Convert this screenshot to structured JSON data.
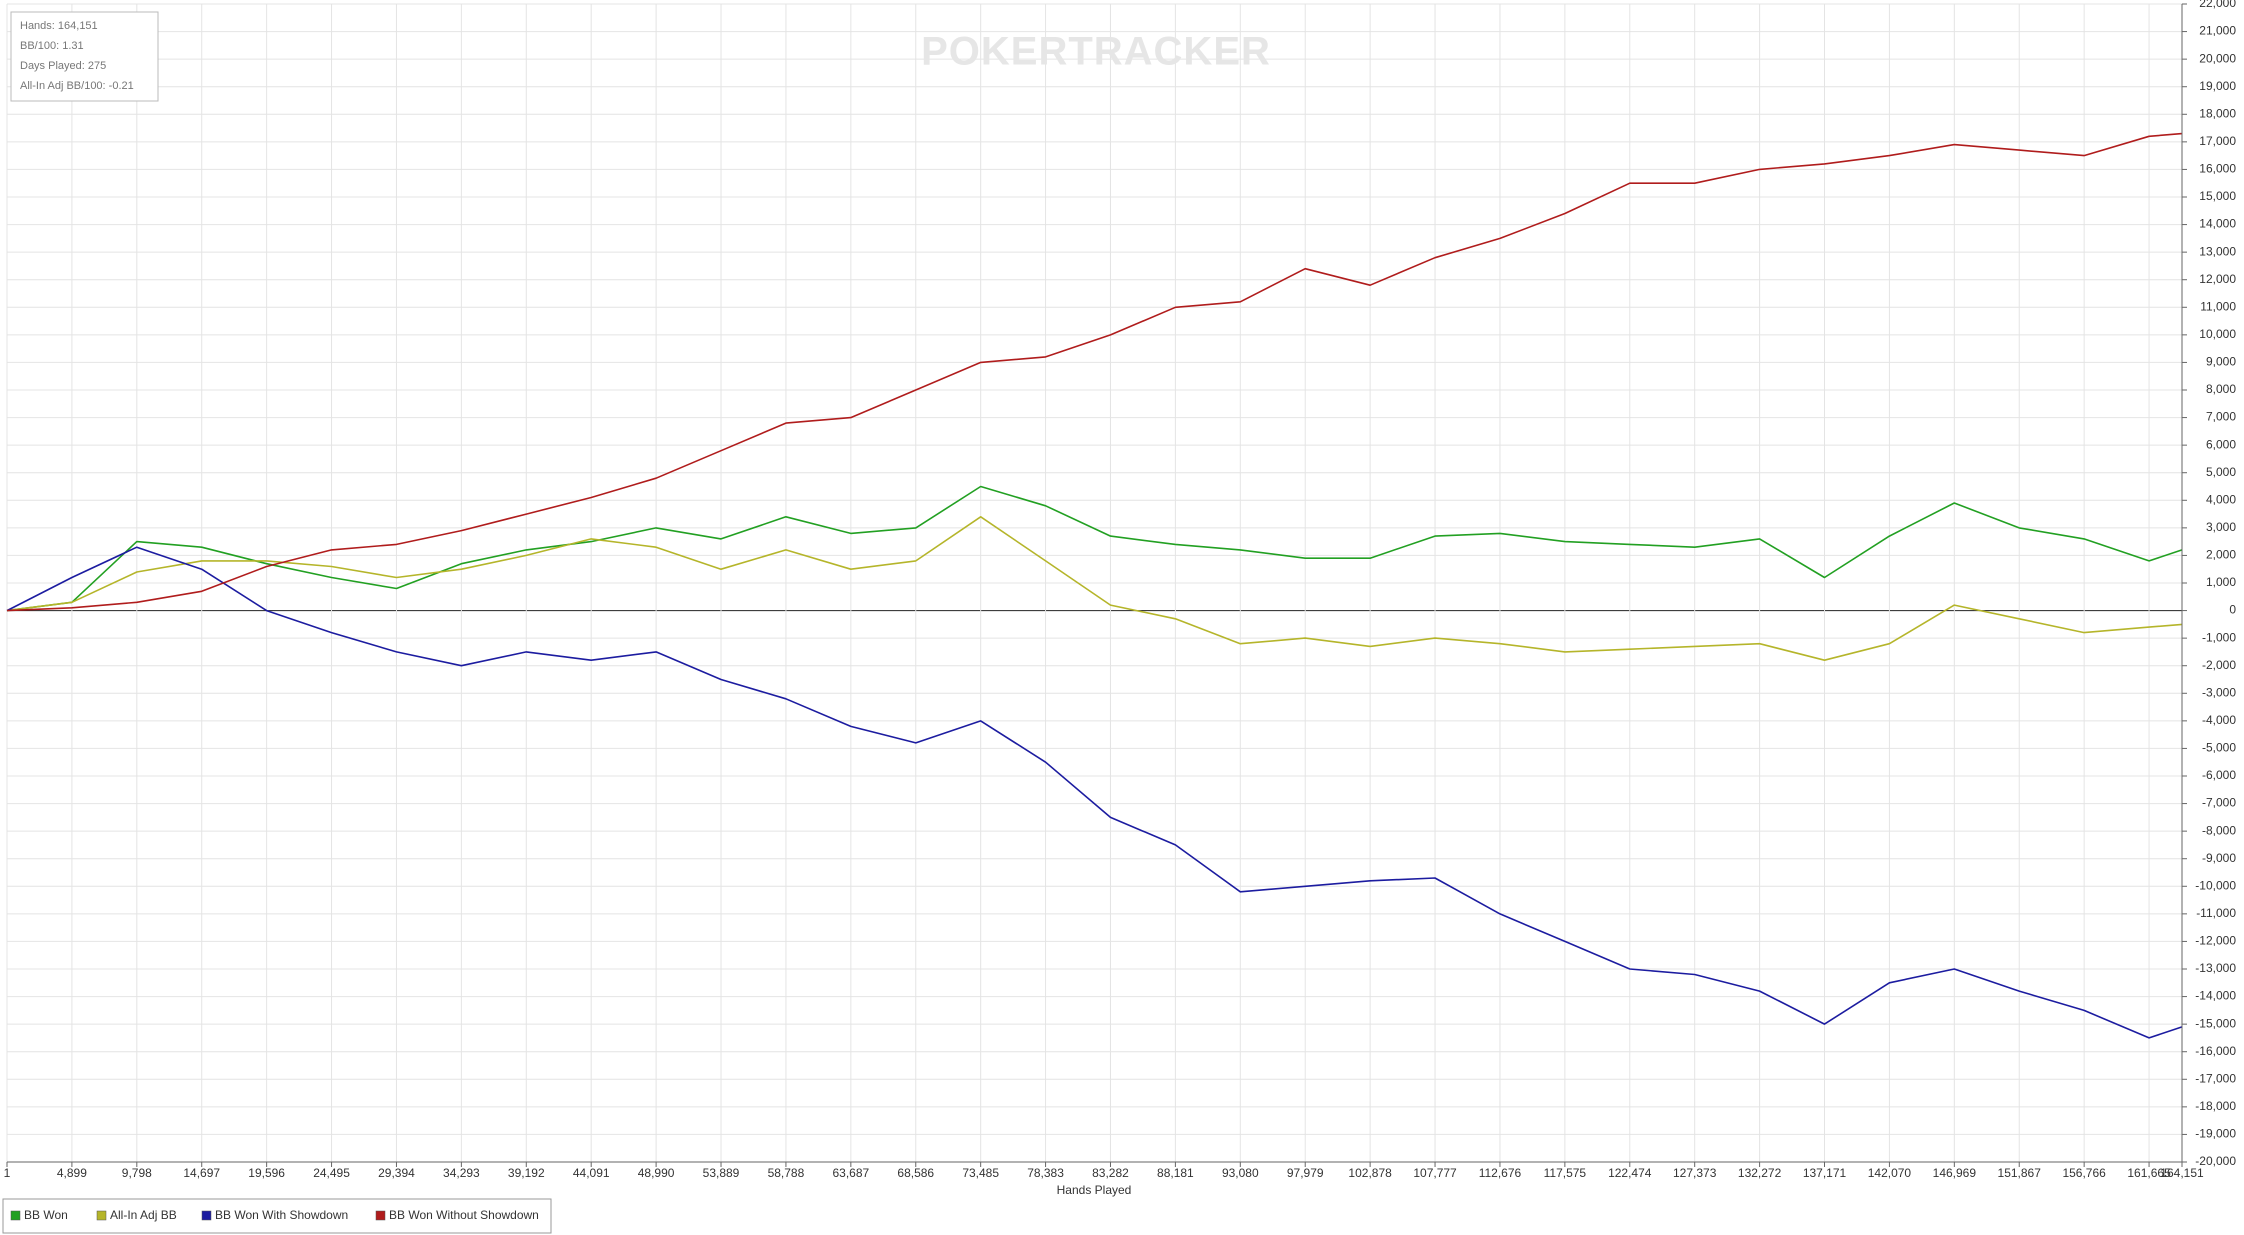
{
  "chart_data": {
    "type": "line",
    "watermark": "POKERTRACKER",
    "annotations": [
      "Hands: 164,151",
      "BB/100: 1.31",
      "Days Played: 275",
      "All-In Adj BB/100: -0.21"
    ],
    "x_label": "Hands Played",
    "x": [
      1,
      4899,
      9798,
      14697,
      19596,
      24495,
      29394,
      34293,
      39192,
      44091,
      48990,
      53889,
      58788,
      63687,
      68586,
      73485,
      78383,
      83282,
      88181,
      93080,
      97979,
      102878,
      107777,
      112676,
      117575,
      122474,
      127373,
      132272,
      137171,
      142070,
      146969,
      151867,
      156766,
      161665,
      164151
    ],
    "series": [
      {
        "name": "BB Won",
        "color": "#22a022",
        "values": [
          0,
          300,
          2500,
          2300,
          1700,
          1200,
          800,
          1700,
          2200,
          2500,
          3000,
          2600,
          3400,
          2800,
          3000,
          4500,
          3800,
          2700,
          2400,
          2200,
          1900,
          1900,
          2700,
          2800,
          2500,
          2400,
          2300,
          2600,
          1200,
          2700,
          3900,
          3000,
          2600,
          1800,
          2200
        ]
      },
      {
        "name": "All-In Adj BB",
        "color": "#b5b52a",
        "values": [
          0,
          300,
          1400,
          1800,
          1800,
          1600,
          1200,
          1500,
          2000,
          2600,
          2300,
          1500,
          2200,
          1500,
          1800,
          3400,
          1800,
          200,
          -300,
          -1200,
          -1000,
          -1300,
          -1000,
          -1200,
          -1500,
          -1400,
          -1300,
          -1200,
          -1800,
          -1200,
          200,
          -300,
          -800,
          -600,
          -500
        ]
      },
      {
        "name": "BB Won With Showdown",
        "color": "#1c1ca0",
        "values": [
          0,
          1200,
          2300,
          1500,
          0,
          -800,
          -1500,
          -2000,
          -1500,
          -1800,
          -1500,
          -2500,
          -3200,
          -4200,
          -4800,
          -4000,
          -5500,
          -7500,
          -8500,
          -10200,
          -10000,
          -9800,
          -9700,
          -11000,
          -12000,
          -13000,
          -13200,
          -13800,
          -15000,
          -13500,
          -13000,
          -13800,
          -14500,
          -15500,
          -15100
        ]
      },
      {
        "name": "BB Won Without Showdown",
        "color": "#b01c1c",
        "values": [
          0,
          100,
          300,
          700,
          1600,
          2200,
          2400,
          2900,
          3500,
          4100,
          4800,
          5800,
          6800,
          7000,
          8000,
          9000,
          9200,
          10000,
          11000,
          11200,
          12400,
          11800,
          12800,
          13500,
          14400,
          15500,
          15500,
          16000,
          16200,
          16500,
          16900,
          16700,
          16500,
          17200,
          17300
        ]
      }
    ],
    "xlim": [
      1,
      164151
    ],
    "xticks": [
      1,
      {
        "value": 4899,
        "label": "4,899"
      },
      {
        "value": 9798,
        "label": "9,798"
      },
      {
        "value": 14697,
        "label": "14,697"
      },
      {
        "value": 19596,
        "label": "19,596"
      },
      {
        "value": 24495,
        "label": "24,495"
      },
      {
        "value": 29394,
        "label": "29,394"
      },
      {
        "value": 34293,
        "label": "34,293"
      },
      {
        "value": 39192,
        "label": "39,192"
      },
      {
        "value": 44091,
        "label": "44,091"
      },
      {
        "value": 48990,
        "label": "48,990"
      },
      {
        "value": 53889,
        "label": "53,889"
      },
      {
        "value": 58788,
        "label": "58,788"
      },
      {
        "value": 63687,
        "label": "63,687"
      },
      {
        "value": 68586,
        "label": "68,586"
      },
      {
        "value": 73485,
        "label": "73,485"
      },
      {
        "value": 78383,
        "label": "78,383"
      },
      {
        "value": 83282,
        "label": "83,282"
      },
      {
        "value": 88181,
        "label": "88,181"
      },
      {
        "value": 93080,
        "label": "93,080"
      },
      {
        "value": 97979,
        "label": "97,979"
      },
      {
        "value": 102878,
        "label": "102,878"
      },
      {
        "value": 107777,
        "label": "107,777"
      },
      {
        "value": 112676,
        "label": "112,676"
      },
      {
        "value": 117575,
        "label": "117,575"
      },
      {
        "value": 122474,
        "label": "122,474"
      },
      {
        "value": 127373,
        "label": "127,373"
      },
      {
        "value": 132272,
        "label": "132,272"
      },
      {
        "value": 137171,
        "label": "137,171"
      },
      {
        "value": 142070,
        "label": "142,070"
      },
      {
        "value": 146969,
        "label": "146,969"
      },
      {
        "value": 151867,
        "label": "151,867"
      },
      {
        "value": 156766,
        "label": "156,766"
      },
      {
        "value": 161665,
        "label": "161,665"
      },
      {
        "value": 164151,
        "label": "164,151"
      }
    ],
    "ylim": [
      -20000,
      22000
    ],
    "yticks": [
      {
        "value": -20000,
        "label": "-20,000"
      },
      {
        "value": -19000,
        "label": "-19,000"
      },
      {
        "value": -18000,
        "label": "-18,000"
      },
      {
        "value": -17000,
        "label": "-17,000"
      },
      {
        "value": -16000,
        "label": "-16,000"
      },
      {
        "value": -15000,
        "label": "-15,000"
      },
      {
        "value": -14000,
        "label": "-14,000"
      },
      {
        "value": -13000,
        "label": "-13,000"
      },
      {
        "value": -12000,
        "label": "-12,000"
      },
      {
        "value": -11000,
        "label": "-11,000"
      },
      {
        "value": -10000,
        "label": "-10,000"
      },
      {
        "value": -9000,
        "label": "-9,000"
      },
      {
        "value": -8000,
        "label": "-8,000"
      },
      {
        "value": -7000,
        "label": "-7,000"
      },
      {
        "value": -6000,
        "label": "-6,000"
      },
      {
        "value": -5000,
        "label": "-5,000"
      },
      {
        "value": -4000,
        "label": "-4,000"
      },
      {
        "value": -3000,
        "label": "-3,000"
      },
      {
        "value": -2000,
        "label": "-2,000"
      },
      {
        "value": -1000,
        "label": "-1,000"
      },
      0,
      {
        "value": 1000,
        "label": "1,000"
      },
      {
        "value": 2000,
        "label": "2,000"
      },
      {
        "value": 3000,
        "label": "3,000"
      },
      {
        "value": 4000,
        "label": "4,000"
      },
      {
        "value": 5000,
        "label": "5,000"
      },
      {
        "value": 6000,
        "label": "6,000"
      },
      {
        "value": 7000,
        "label": "7,000"
      },
      {
        "value": 8000,
        "label": "8,000"
      },
      {
        "value": 9000,
        "label": "9,000"
      },
      {
        "value": 10000,
        "label": "10,000"
      },
      {
        "value": 11000,
        "label": "11,000"
      },
      {
        "value": 12000,
        "label": "12,000"
      },
      {
        "value": 13000,
        "label": "13,000"
      },
      {
        "value": 14000,
        "label": "14,000"
      },
      {
        "value": 15000,
        "label": "15,000"
      },
      {
        "value": 16000,
        "label": "16,000"
      },
      {
        "value": 17000,
        "label": "17,000"
      },
      {
        "value": 18000,
        "label": "18,000"
      },
      {
        "value": 19000,
        "label": "19,000"
      },
      {
        "value": 20000,
        "label": "20,000"
      },
      {
        "value": 21000,
        "label": "21,000"
      },
      {
        "value": 22000,
        "label": "22,000"
      }
    ],
    "grid": true
  }
}
